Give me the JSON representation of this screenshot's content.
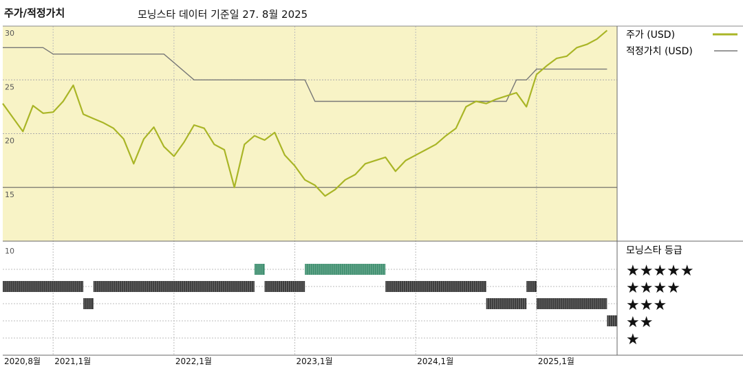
{
  "header": {
    "title": "주가/적정가치",
    "subtitle": "모닝스타 데이터 기준일 27. 8월 2025"
  },
  "legend": {
    "price_label": "주가 (USD)",
    "fair_label": "적정가치 (USD)",
    "rating_title": "모닝스타 등급"
  },
  "colors": {
    "price": "#a9b526",
    "fair": "#777777",
    "plot_bg": "#f8f3c6",
    "rating_dark": "#3a3a3a",
    "rating_green": "#3f8f70"
  },
  "chart_data": [
    {
      "type": "line",
      "title": "주가/적정가치",
      "x_ticks": [
        "2020,8월",
        "2021,1월",
        "2022,1월",
        "2023,1월",
        "2024,1월",
        "2025,1월"
      ],
      "ylim": [
        10,
        30
      ],
      "y_ticks": [
        15,
        20,
        25,
        30
      ],
      "grid": true,
      "series": [
        {
          "name": "주가 (USD)",
          "x": [
            "2020-08",
            "2020-09",
            "2020-10",
            "2020-11",
            "2020-12",
            "2021-01",
            "2021-02",
            "2021-03",
            "2021-04",
            "2021-05",
            "2021-06",
            "2021-07",
            "2021-08",
            "2021-09",
            "2021-10",
            "2021-11",
            "2021-12",
            "2022-01",
            "2022-02",
            "2022-03",
            "2022-04",
            "2022-05",
            "2022-06",
            "2022-07",
            "2022-08",
            "2022-09",
            "2022-10",
            "2022-11",
            "2022-12",
            "2023-01",
            "2023-02",
            "2023-03",
            "2023-04",
            "2023-05",
            "2023-06",
            "2023-07",
            "2023-08",
            "2023-09",
            "2023-10",
            "2023-11",
            "2023-12",
            "2024-01",
            "2024-02",
            "2024-03",
            "2024-04",
            "2024-05",
            "2024-06",
            "2024-07",
            "2024-08",
            "2024-09",
            "2024-10",
            "2024-11",
            "2024-12",
            "2025-01",
            "2025-02",
            "2025-03",
            "2025-04",
            "2025-05",
            "2025-06",
            "2025-07",
            "2025-08"
          ],
          "values": [
            22.8,
            21.5,
            20.2,
            22.6,
            21.9,
            22.0,
            23.0,
            24.5,
            21.8,
            21.4,
            21.0,
            20.5,
            19.5,
            17.2,
            19.5,
            20.6,
            18.8,
            17.9,
            19.2,
            20.8,
            20.5,
            19.0,
            18.5,
            15.0,
            19.0,
            19.8,
            19.4,
            20.1,
            18.0,
            17.0,
            15.7,
            15.2,
            14.2,
            14.8,
            15.7,
            16.2,
            17.2,
            17.5,
            17.8,
            16.5,
            17.5,
            18.0,
            18.5,
            19.0,
            19.8,
            20.5,
            22.5,
            23.0,
            22.8,
            23.2,
            23.5,
            23.8,
            22.5,
            25.5,
            26.3,
            27.0,
            27.2,
            28.0,
            28.3,
            28.8,
            29.6
          ]
        },
        {
          "name": "적정가치 (USD)",
          "x": [
            "2020-08",
            "2020-12",
            "2021-01",
            "2021-12",
            "2022-01",
            "2022-03",
            "2023-02",
            "2023-03",
            "2024-10",
            "2024-11",
            "2024-12",
            "2025-01",
            "2025-02",
            "2025-08"
          ],
          "values": [
            28.0,
            28.0,
            27.4,
            27.4,
            26.6,
            25.0,
            25.0,
            23.0,
            23.0,
            25.0,
            25.0,
            26.0,
            26.0,
            26.0
          ]
        }
      ]
    },
    {
      "type": "heatmap",
      "title": "모닝스타 등급",
      "ylim": [
        0,
        10
      ],
      "y_ticks": [
        10
      ],
      "levels": [
        "★★★★★",
        "★★★★",
        "★★★",
        "★★",
        "★"
      ],
      "segments": [
        {
          "start": "2020-08",
          "end": "2021-04",
          "stars": 4
        },
        {
          "start": "2021-04",
          "end": "2021-05",
          "stars": 3
        },
        {
          "start": "2021-05",
          "end": "2022-09",
          "stars": 4
        },
        {
          "start": "2022-09",
          "end": "2022-10",
          "stars": 5
        },
        {
          "start": "2022-10",
          "end": "2023-02",
          "stars": 4
        },
        {
          "start": "2023-02",
          "end": "2023-10",
          "stars": 5
        },
        {
          "start": "2023-10",
          "end": "2024-08",
          "stars": 4
        },
        {
          "start": "2024-08",
          "end": "2024-12",
          "stars": 3
        },
        {
          "start": "2024-12",
          "end": "2025-01",
          "stars": 4
        },
        {
          "start": "2025-01",
          "end": "2025-08",
          "stars": 3
        },
        {
          "start": "2025-08",
          "end": "2025-09",
          "stars": 2
        }
      ]
    }
  ]
}
